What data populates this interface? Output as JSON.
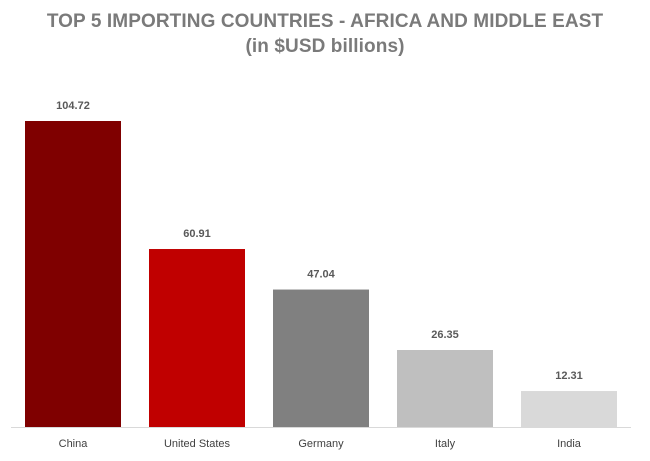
{
  "chart_data": {
    "type": "bar",
    "title": "TOP 5 IMPORTING COUNTRIES - AFRICA AND MIDDLE EAST",
    "subtitle": "(in $USD billions)",
    "categories": [
      "China",
      "United States",
      "Germany",
      "Italy",
      "India"
    ],
    "values": [
      104.72,
      60.91,
      47.04,
      26.35,
      12.31
    ],
    "value_labels": [
      "104.72",
      "60.91",
      "47.04",
      "26.35",
      "12.31"
    ],
    "colors": [
      "#7f0000",
      "#c00000",
      "#808080",
      "#bfbfbf",
      "#d9d9d9"
    ],
    "xlabel": "",
    "ylabel": "",
    "ylim": [
      0,
      104.72
    ],
    "grid": false,
    "legend": "none",
    "axis_line_color": "#d9d9d9"
  }
}
